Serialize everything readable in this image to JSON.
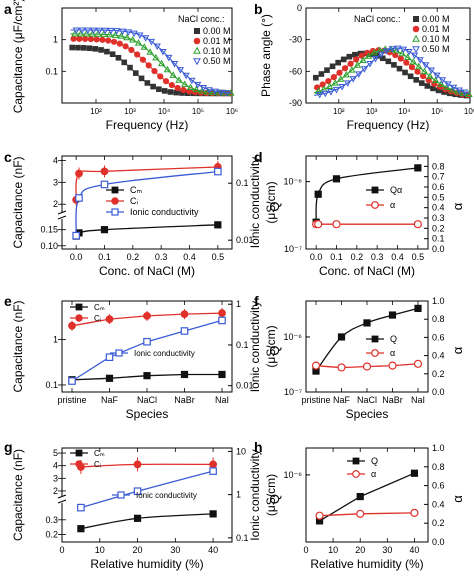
{
  "chart_data": [
    {
      "panel": "a",
      "type": "scatter",
      "xlabel": "Frequency (Hz)",
      "ylabel": "Capacitance (μF/cm²)",
      "xscale": "log",
      "yscale": "log",
      "xlim": [
        10,
        1000000
      ],
      "ylim": [
        0.01,
        10
      ],
      "xticks": [
        "10²",
        "10³",
        "10⁴",
        "10⁵",
        "10⁶"
      ],
      "yticks": [
        "0.1",
        "1"
      ],
      "legend_title": "NaCl conc.:",
      "legend_position": "top-right",
      "series": [
        {
          "name": "0.00 M",
          "color": "#333333",
          "marker": "square",
          "fit": [
            0.55,
            400,
            0.75
          ]
        },
        {
          "name": "0.01 M",
          "color": "#e0302a",
          "marker": "circle",
          "fit": [
            1.05,
            900,
            0.7
          ]
        },
        {
          "name": "0.10 M",
          "color": "#2ca02c",
          "marker": "triangle-up",
          "fit": [
            1.5,
            1800,
            0.7
          ]
        },
        {
          "name": "0.50 M",
          "color": "#3b5bd6",
          "marker": "triangle-down",
          "fit": [
            2.0,
            3500,
            0.7
          ]
        }
      ]
    },
    {
      "panel": "b",
      "type": "scatter",
      "xlabel": "Frequency (Hz)",
      "ylabel": "Phase angle (°)",
      "xscale": "log",
      "xlim": [
        10,
        1000000
      ],
      "ylim": [
        -90,
        0
      ],
      "xticks": [
        "10²",
        "10³",
        "10⁴",
        "10⁵",
        "10⁶"
      ],
      "yticks": [
        "-90",
        "-60",
        "-30",
        "0"
      ],
      "legend_title": "NaCl conc.:",
      "legend_position": "top-right",
      "series": [
        {
          "name": "0.00 M",
          "color": "#333333",
          "marker": "square",
          "peak_freq": 600,
          "peak": -43,
          "width": 1.15
        },
        {
          "name": "0.01 M",
          "color": "#e0302a",
          "marker": "circle",
          "peak_freq": 1700,
          "peak": -40,
          "width": 1.05
        },
        {
          "name": "0.10 M",
          "color": "#2ca02c",
          "marker": "triangle-up",
          "peak_freq": 3000,
          "peak": -39,
          "width": 1.0
        },
        {
          "name": "0.50 M",
          "color": "#3b5bd6",
          "marker": "triangle-down",
          "peak_freq": 6000,
          "peak": -38,
          "width": 0.95
        }
      ]
    },
    {
      "panel": "c",
      "type": "line",
      "xlabel": "Conc. of NaCl (M)",
      "ylabel": "Capacitance (nF)",
      "y2label": "Ionic conductivity (μS/cm)",
      "x": [
        0.0,
        0.01,
        0.1,
        0.5
      ],
      "xlim": [
        -0.05,
        0.55
      ],
      "xticks": [
        "0.0",
        "0.1",
        "0.2",
        "0.3",
        "0.4",
        "0.5"
      ],
      "yticks_lower": [
        "0.10",
        "0.15"
      ],
      "yticks_upper": [
        "2",
        "3",
        "4"
      ],
      "y2ticks": [
        "0.01",
        "0.1"
      ],
      "legend_position": "bottom-center",
      "series": [
        {
          "name": "Cₘ",
          "color": "#111111",
          "marker": "square",
          "values": [
            0.13,
            0.14,
            0.15,
            0.165
          ],
          "axis": "lower"
        },
        {
          "name": "Cᵢ",
          "color": "#e0302a",
          "marker": "circle",
          "values": [
            2.2,
            3.4,
            3.5,
            3.7
          ],
          "axis": "upper"
        },
        {
          "name": "Ionic conductivity",
          "color": "#3b5bd6",
          "marker": "open-square",
          "values": [
            0.012,
            0.055,
            0.095,
            0.16
          ],
          "axis": "right"
        }
      ]
    },
    {
      "panel": "d",
      "type": "line",
      "xlabel": "Conc. of NaCl (M)",
      "ylabel": "Q",
      "y2label": "α",
      "x": [
        0.0,
        0.01,
        0.1,
        0.5
      ],
      "xlim": [
        -0.05,
        0.55
      ],
      "xticks": [
        "0.0",
        "0.1",
        "0.2",
        "0.3",
        "0.4",
        "0.5"
      ],
      "yticks": [
        "10⁻⁷",
        "10⁻⁶"
      ],
      "y2ticks": [
        "0.0",
        "0.1",
        "0.2",
        "0.3",
        "0.4",
        "0.5",
        "0.6",
        "0.7",
        "0.8"
      ],
      "legend_position": "center-right",
      "series": [
        {
          "name": "Qα",
          "color": "#111111",
          "marker": "square",
          "values": [
            2.5e-07,
            6.5e-07,
            1.1e-06,
            1.6e-06
          ],
          "axis": "left"
        },
        {
          "name": "α",
          "color": "#e0302a",
          "marker": "open-circle",
          "values": [
            0.24,
            0.24,
            0.24,
            0.24
          ],
          "axis": "right"
        }
      ]
    },
    {
      "panel": "e",
      "type": "line",
      "xlabel": "Species",
      "ylabel": "Capacitance (nF)",
      "y2label": "Ionic conductivity (μS/cm)",
      "categories": [
        "pristine",
        "NaF",
        "NaCl",
        "NaBr",
        "NaI"
      ],
      "yticks": [
        "0.1",
        "1"
      ],
      "y2ticks": [
        "0.01",
        "0.1",
        "1"
      ],
      "legend_position": "top-left",
      "series": [
        {
          "name": "Cₘ",
          "color": "#111111",
          "marker": "square",
          "values": [
            0.13,
            0.14,
            0.16,
            0.17,
            0.17
          ],
          "axis": "left"
        },
        {
          "name": "Cᵢ",
          "color": "#e0302a",
          "marker": "circle",
          "values": [
            2.0,
            2.8,
            3.3,
            3.6,
            3.8
          ],
          "axis": "left"
        },
        {
          "name": "Ionic conductivity",
          "color": "#3b5bd6",
          "marker": "open-square",
          "values": [
            0.013,
            0.05,
            0.12,
            0.22,
            0.4
          ],
          "axis": "right"
        }
      ]
    },
    {
      "panel": "f",
      "type": "line",
      "xlabel": "Species",
      "ylabel": "Q",
      "y2label": "α",
      "categories": [
        "pristine",
        "NaF",
        "NaCl",
        "NaBr",
        "NaI"
      ],
      "yticks": [
        "10⁻⁷",
        "10⁻⁶"
      ],
      "y2ticks": [
        "0.0",
        "0.2",
        "0.4",
        "0.6",
        "0.8",
        "1.0"
      ],
      "legend_position": "center-right",
      "series": [
        {
          "name": "Q",
          "color": "#111111",
          "marker": "square",
          "values": [
            2.4e-07,
            1e-06,
            1.8e-06,
            2.5e-06,
            3.3e-06
          ],
          "axis": "left"
        },
        {
          "name": "α",
          "color": "#e0302a",
          "marker": "open-circle",
          "values": [
            0.29,
            0.27,
            0.28,
            0.29,
            0.31
          ],
          "axis": "right"
        }
      ]
    },
    {
      "panel": "g",
      "type": "line",
      "xlabel": "Relative humidity (%)",
      "ylabel": "Capacitance (nF)",
      "y2label": "Ionic conductivity (μS/cm)",
      "x": [
        5,
        20,
        40
      ],
      "xlim": [
        0,
        45
      ],
      "xticks": [
        "0",
        "10",
        "20",
        "30",
        "40"
      ],
      "yticks_lower": [
        "0.2",
        "0.3"
      ],
      "yticks_upper": [
        "2",
        "3",
        "4",
        "5"
      ],
      "y2ticks": [
        "0.1",
        "1",
        "10"
      ],
      "legend_position": "top-left",
      "series": [
        {
          "name": "Cₘ",
          "color": "#111111",
          "marker": "square",
          "values": [
            0.24,
            0.31,
            0.34
          ],
          "axis": "lower"
        },
        {
          "name": "Cᵢ",
          "color": "#e0302a",
          "marker": "circle",
          "values": [
            3.9,
            4.1,
            4.1
          ],
          "axis": "upper"
        },
        {
          "name": "Ionic conductivity",
          "color": "#3b5bd6",
          "marker": "open-square",
          "values": [
            0.5,
            1.2,
            3.5
          ],
          "axis": "right"
        }
      ]
    },
    {
      "panel": "h",
      "type": "line",
      "xlabel": "Relative humidity (%)",
      "ylabel": "Q",
      "y2label": "α",
      "x": [
        5,
        20,
        40
      ],
      "xlim": [
        0,
        45
      ],
      "xticks": [
        "0",
        "10",
        "20",
        "30",
        "40"
      ],
      "yticks": [
        "10⁻⁶"
      ],
      "y2ticks": [
        "0.0",
        "0.2",
        "0.4",
        "0.6",
        "0.8",
        "1.0"
      ],
      "legend_position": "top-right",
      "series": [
        {
          "name": "Q",
          "color": "#111111",
          "marker": "square",
          "values": [
            2.6e-07,
            5.3e-07,
            1.05e-06
          ],
          "axis": "left"
        },
        {
          "name": "α",
          "color": "#e0302a",
          "marker": "open-circle",
          "values": [
            0.28,
            0.3,
            0.31
          ],
          "axis": "right"
        }
      ]
    }
  ],
  "panel_labels": [
    "a",
    "b",
    "c",
    "d",
    "e",
    "f",
    "g",
    "h"
  ]
}
